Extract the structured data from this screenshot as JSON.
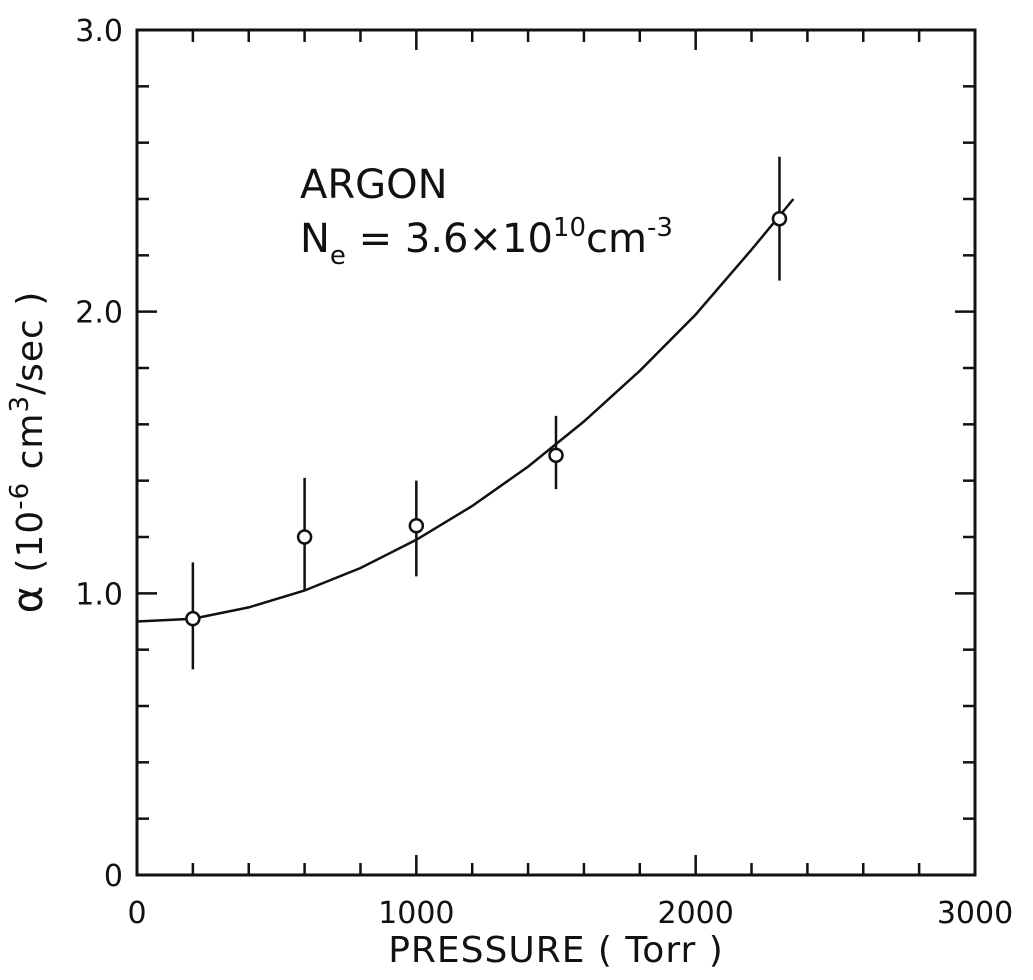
{
  "chart_data": {
    "type": "scatter",
    "title": "",
    "xlabel": "PRESSURE ( Torr )",
    "ylabel": {
      "symbol": "α",
      "prefix": "(10",
      "exp": "-6",
      "mid": " cm",
      "exp2": "3",
      "suffix": "/sec )"
    },
    "xlim": [
      0,
      3000
    ],
    "ylim": [
      0,
      3.0
    ],
    "x_ticks": [
      {
        "value": 0,
        "label": "0"
      },
      {
        "value": 1000,
        "label": "1000"
      },
      {
        "value": 2000,
        "label": "2000"
      },
      {
        "value": 3000,
        "label": "3000"
      }
    ],
    "y_ticks": [
      {
        "value": 0,
        "label": "0"
      },
      {
        "value": 1.0,
        "label": "1.0"
      },
      {
        "value": 2.0,
        "label": "2.0"
      },
      {
        "value": 3.0,
        "label": "3.0"
      }
    ],
    "x_minor_step": 200,
    "y_minor_step": 0.2,
    "grid": false,
    "series": [
      {
        "marker": "open-circle",
        "points": [
          {
            "x": 200,
            "y": 0.91,
            "err_low": 0.73,
            "err_high": 1.11
          },
          {
            "x": 600,
            "y": 1.2,
            "err_low": 1.01,
            "err_high": 1.41
          },
          {
            "x": 1000,
            "y": 1.24,
            "err_low": 1.06,
            "err_high": 1.4
          },
          {
            "x": 1500,
            "y": 1.49,
            "err_low": 1.37,
            "err_high": 1.63
          },
          {
            "x": 2300,
            "y": 2.33,
            "err_low": 2.11,
            "err_high": 2.55
          }
        ]
      }
    ],
    "fit_curve": {
      "style": "solid",
      "x": [
        0,
        200,
        400,
        600,
        800,
        1000,
        1200,
        1400,
        1600,
        1800,
        2000,
        2200,
        2350
      ],
      "y": [
        0.9,
        0.91,
        0.95,
        1.01,
        1.09,
        1.19,
        1.31,
        1.45,
        1.61,
        1.79,
        1.99,
        2.22,
        2.4
      ]
    },
    "annotations": {
      "gas": "ARGON",
      "density_label": "N",
      "density_sub": "e",
      "density_eq": " = 3.6×10",
      "density_exp": "10",
      "density_unit": "cm",
      "density_unit_exp": "-3"
    }
  }
}
